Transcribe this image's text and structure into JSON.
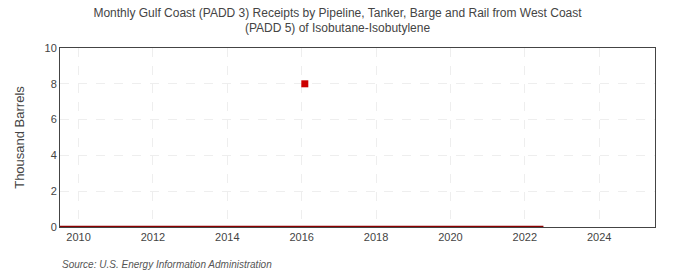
{
  "chart_data": {
    "type": "line",
    "title": "Monthly Gulf Coast (PADD 3) Receipts by Pipeline, Tanker, Barge and Rail from West Coast\n(PADD 5) of Isobutane-Isobutylene",
    "ylabel": "Thousand Barrels",
    "annotations": [
      "Source: U.S. Energy Information Administration"
    ],
    "series": [
      {
        "type": "line",
        "x": [
          2009.5,
          2022.5
        ],
        "values": [
          0.0,
          0.0
        ],
        "color": "#8b0000",
        "line_style": "solid"
      },
      {
        "type": "scatter",
        "x": [
          2016.083
        ],
        "values": [
          8.0
        ],
        "color": "#cc0000",
        "marker": "square"
      }
    ],
    "xlim": [
      2009.5,
      2025.5
    ],
    "ylim": [
      0,
      10
    ],
    "xticks": [
      2010,
      2012,
      2014,
      2016,
      2018,
      2020,
      2022,
      2024
    ],
    "yticks": [
      0,
      2,
      4,
      6,
      8,
      10
    ],
    "grid": true
  }
}
